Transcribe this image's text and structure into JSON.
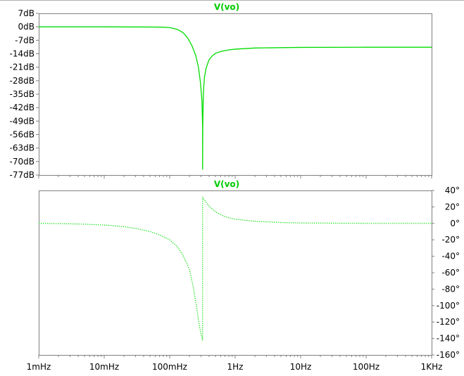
{
  "window": {
    "top_rule_color": "#b0b0b0"
  },
  "chart_data": [
    {
      "type": "line",
      "title": "V(vo)",
      "trace_color": "#00dd00",
      "line_style": "solid",
      "x_scale": "log",
      "xlim": [
        0.001,
        1000
      ],
      "ylim": [
        -77,
        7
      ],
      "y_axis_side": "left",
      "grid": false,
      "ytick_values": [
        7,
        0,
        -7,
        -14,
        -21,
        -28,
        -35,
        -42,
        -49,
        -56,
        -63,
        -70,
        -77
      ],
      "ytick_labels": [
        "7dB",
        "0dB",
        "-7dB",
        "-14dB",
        "-21dB",
        "-28dB",
        "-35dB",
        "-42dB",
        "-49dB",
        "-56dB",
        "-63dB",
        "-70dB",
        "-77dB"
      ],
      "series": [
        {
          "x": [
            0.001,
            0.01,
            0.05,
            0.08,
            0.1,
            0.13,
            0.16,
            0.19,
            0.22,
            0.25,
            0.275,
            0.295,
            0.31,
            0.315,
            0.318,
            0.3183,
            0.32,
            0.325,
            0.33,
            0.34,
            0.36,
            0.4,
            0.45,
            0.5,
            0.6,
            0.8,
            1,
            2,
            10,
            100,
            1000
          ],
          "y": [
            0,
            0,
            -0.1,
            -0.2,
            -0.4,
            -1.3,
            -3,
            -6,
            -10,
            -15,
            -21,
            -29,
            -38,
            -46,
            -52,
            -74,
            -52,
            -38,
            -32,
            -26,
            -21.5,
            -17,
            -15,
            -13.8,
            -12.8,
            -12,
            -11.6,
            -11,
            -10.7,
            -10.6,
            -10.6
          ]
        }
      ]
    },
    {
      "type": "line",
      "title": "V(vo)",
      "trace_color": "#00dd00",
      "line_style": "dotted",
      "x_scale": "log",
      "xlim": [
        0.001,
        1000
      ],
      "ylim": [
        -160,
        40
      ],
      "y_axis_side": "right",
      "grid": false,
      "ytick_values": [
        40,
        20,
        0,
        -20,
        -40,
        -60,
        -80,
        -100,
        -120,
        -140,
        -160
      ],
      "ytick_labels": [
        "40°",
        "20°",
        "0°",
        "-20°",
        "-40°",
        "-60°",
        "-80°",
        "-100°",
        "-120°",
        "-140°",
        "-160°"
      ],
      "xtick_values": [
        0.001,
        0.01,
        0.1,
        1,
        10,
        100,
        1000
      ],
      "xtick_labels": [
        "1mHz",
        "10mHz",
        "100mHz",
        "1Hz",
        "10Hz",
        "100Hz",
        "1KHz"
      ],
      "series": [
        {
          "x": [
            0.001,
            0.003,
            0.005,
            0.01,
            0.02,
            0.03,
            0.05,
            0.07,
            0.1,
            0.13,
            0.16,
            0.2,
            0.23,
            0.26,
            0.28,
            0.3,
            0.315,
            0.3183,
            0.3183,
            0.33,
            0.35,
            0.4,
            0.5,
            0.7,
            1,
            2,
            5,
            10,
            100,
            1000
          ],
          "y": [
            0,
            -0.6,
            -1,
            -2,
            -4,
            -6,
            -10,
            -14,
            -20,
            -28,
            -39,
            -56,
            -78,
            -104,
            -122,
            -134,
            -140,
            -142,
            32,
            30,
            27,
            21,
            14,
            8,
            5,
            2.5,
            1,
            0.5,
            0,
            0
          ]
        }
      ]
    }
  ]
}
